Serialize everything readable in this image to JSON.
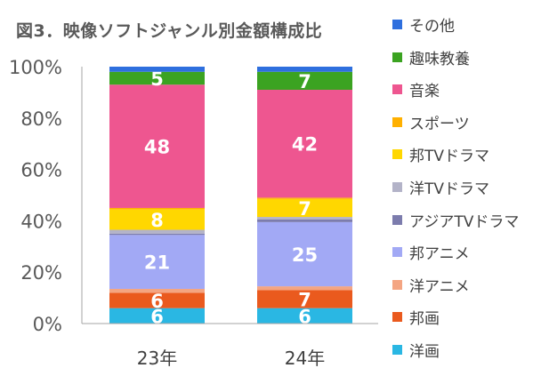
{
  "chart_data": {
    "type": "bar",
    "stacked": true,
    "normalized": true,
    "title": "図3．映像ソフトジャンル別金額構成比",
    "xlabel": "",
    "ylabel": "",
    "categories": [
      "23年",
      "24年"
    ],
    "ylim": [
      0,
      100
    ],
    "yticks": [
      "0%",
      "20%",
      "40%",
      "60%",
      "80%",
      "100%"
    ],
    "legend_position": "right",
    "grid": false,
    "series": [
      {
        "name": "洋画",
        "color": "#2AB7E3",
        "values": [
          6,
          6
        ],
        "labels": [
          "6",
          "6"
        ]
      },
      {
        "name": "邦画",
        "color": "#EA5A1E",
        "values": [
          6,
          7
        ],
        "labels": [
          "6",
          "7"
        ]
      },
      {
        "name": "洋アニメ",
        "color": "#F4A582",
        "values": [
          1.5,
          1.5
        ],
        "labels": [
          "",
          ""
        ]
      },
      {
        "name": "邦アニメ",
        "color": "#A2A9F5",
        "values": [
          21,
          25
        ],
        "labels": [
          "21",
          "25"
        ]
      },
      {
        "name": "アジアTVドラマ",
        "color": "#7C7CAD",
        "values": [
          0.5,
          1
        ],
        "labels": [
          "",
          ""
        ]
      },
      {
        "name": "洋TVドラマ",
        "color": "#B3B3C8",
        "values": [
          1.5,
          1
        ],
        "labels": [
          "",
          ""
        ]
      },
      {
        "name": "邦TVドラマ",
        "color": "#FFD700",
        "values": [
          8,
          7
        ],
        "labels": [
          "8",
          "7"
        ]
      },
      {
        "name": "スポーツ",
        "color": "#FFB000",
        "values": [
          0.5,
          0.5
        ],
        "labels": [
          "",
          ""
        ]
      },
      {
        "name": "音楽",
        "color": "#EE5690",
        "values": [
          48,
          42
        ],
        "labels": [
          "48",
          "42"
        ]
      },
      {
        "name": "趣味教養",
        "color": "#3BA321",
        "values": [
          5,
          7
        ],
        "labels": [
          "5",
          "7"
        ]
      },
      {
        "name": "その他",
        "color": "#2E6FDE",
        "values": [
          2,
          2
        ],
        "labels": [
          "",
          ""
        ]
      }
    ]
  }
}
